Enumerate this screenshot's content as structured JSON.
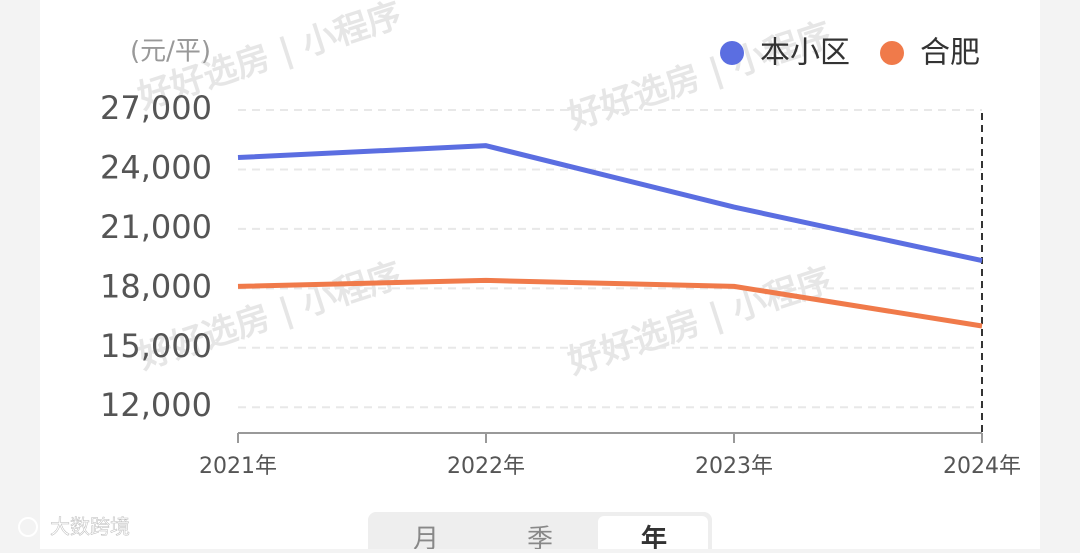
{
  "chart_data": {
    "type": "line",
    "unit_label": "(元/平)",
    "categories": [
      "2021年",
      "2022年",
      "2023年",
      "2024年"
    ],
    "series": [
      {
        "name": "本小区",
        "color": "#5b6ee1",
        "values": [
          24600,
          25200,
          22100,
          19400
        ]
      },
      {
        "name": "合肥",
        "color": "#f07a4a",
        "values": [
          18100,
          18400,
          18100,
          16100
        ]
      }
    ],
    "ylim": [
      10700,
      27000
    ],
    "yticks": [
      {
        "value": 12000,
        "label": "12,000"
      },
      {
        "value": 15000,
        "label": "15,000"
      },
      {
        "value": 18000,
        "label": "18,000"
      },
      {
        "value": 21000,
        "label": "21,000"
      },
      {
        "value": 24000,
        "label": "24,000"
      },
      {
        "value": 27000,
        "label": "27,000"
      }
    ],
    "grid": true
  },
  "watermark": "好好选房 | 小程序",
  "tabs": [
    "月",
    "季",
    "年"
  ],
  "source": "大数跨境"
}
